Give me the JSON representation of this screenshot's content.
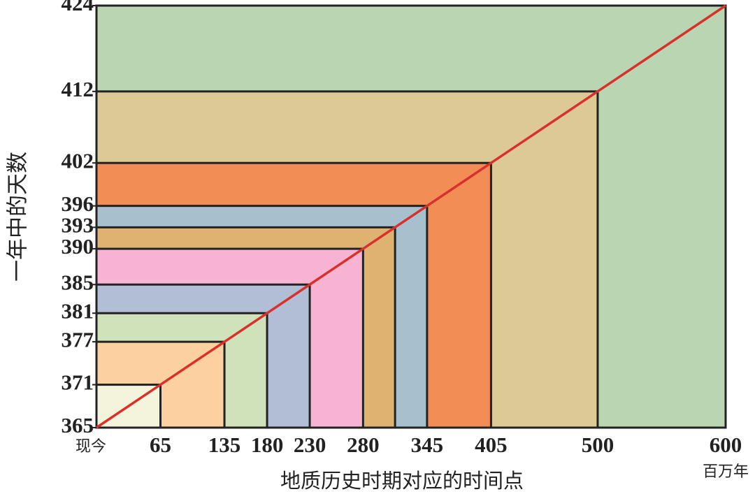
{
  "chart_data": {
    "type": "nested-rect",
    "x_label": "地质历史时期对应的时间点",
    "y_label": "一年中的天数",
    "x_unit": "百万年",
    "categories": [
      "现今",
      "65",
      "135",
      "180",
      "230",
      "280",
      null,
      "345",
      "405",
      "500",
      "600"
    ],
    "values": [
      365,
      371,
      377,
      381,
      385,
      390,
      393,
      396,
      402,
      412,
      424
    ],
    "colors": [
      "#f4f4dc",
      "#fdd0a0",
      "#cfe2b9",
      "#b2bed5",
      "#f6b4d2",
      "#e0b272",
      "#a6c1cd",
      "#f28d56",
      "#dcc995",
      "#b9d5b1"
    ],
    "line_color": "#d9302c",
    "ylim": [
      365,
      424
    ],
    "yticks": [
      365,
      371,
      377,
      381,
      385,
      390,
      393,
      396,
      402,
      412,
      424
    ]
  }
}
